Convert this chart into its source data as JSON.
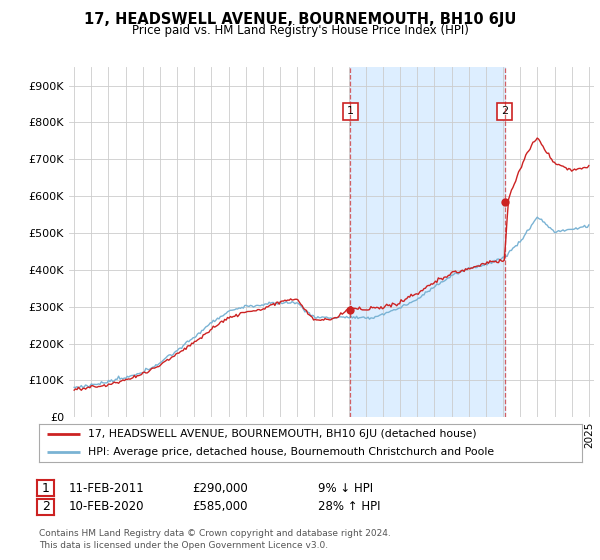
{
  "title": "17, HEADSWELL AVENUE, BOURNEMOUTH, BH10 6JU",
  "subtitle": "Price paid vs. HM Land Registry's House Price Index (HPI)",
  "legend_line1": "17, HEADSWELL AVENUE, BOURNEMOUTH, BH10 6JU (detached house)",
  "legend_line2": "HPI: Average price, detached house, Bournemouth Christchurch and Poole",
  "footnote": "Contains HM Land Registry data © Crown copyright and database right 2024.\nThis data is licensed under the Open Government Licence v3.0.",
  "transaction1_date": "11-FEB-2011",
  "transaction1_price": "£290,000",
  "transaction1_hpi": "9% ↓ HPI",
  "transaction2_date": "10-FEB-2020",
  "transaction2_price": "£585,000",
  "transaction2_hpi": "28% ↑ HPI",
  "hpi_color": "#7ab3d4",
  "price_color": "#cc2222",
  "shade_color": "#ddeeff",
  "background_color": "#ffffff",
  "plot_bg_color": "#ffffff",
  "grid_color": "#cccccc",
  "ylim": [
    0,
    950000
  ],
  "yticks": [
    0,
    100000,
    200000,
    300000,
    400000,
    500000,
    600000,
    700000,
    800000,
    900000
  ],
  "ytick_labels": [
    "£0",
    "£100K",
    "£200K",
    "£300K",
    "£400K",
    "£500K",
    "£600K",
    "£700K",
    "£800K",
    "£900K"
  ],
  "xmin": 1994.7,
  "xmax": 2025.3,
  "transaction1_x": 2011.1,
  "transaction2_x": 2020.1,
  "transaction1_y": 290000,
  "transaction2_y": 585000
}
